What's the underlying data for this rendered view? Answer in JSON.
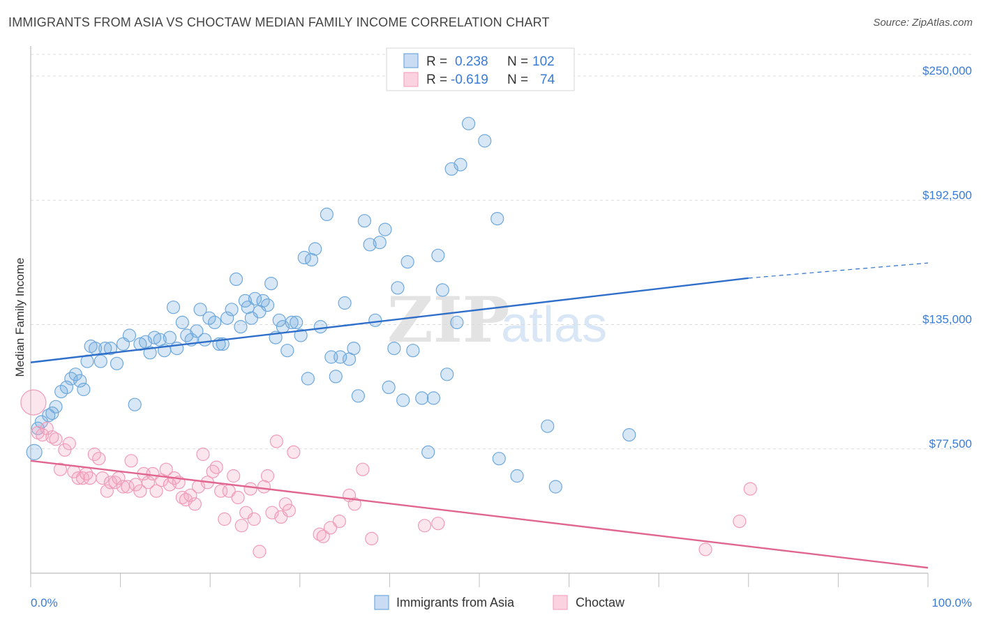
{
  "title": "IMMIGRANTS FROM ASIA VS CHOCTAW MEDIAN FAMILY INCOME CORRELATION CHART",
  "source": "Source: ZipAtlas.com",
  "watermark": {
    "zip": "ZIP",
    "atlas": "atlas"
  },
  "legend": {
    "rows": [
      {
        "r_label": "R =",
        "r_value": "0.238",
        "n_label": "N =",
        "n_value": "102"
      },
      {
        "r_label": "R =",
        "r_value": "-0.619",
        "n_label": "N =",
        "n_value": "74"
      }
    ]
  },
  "colors": {
    "blue": "#6fa8dc",
    "blue_line": "#2f6fca",
    "pink": "#f4a6c0",
    "pink_line": "#e0668f",
    "label_blue": "#3a7bd5"
  },
  "chart_data": {
    "type": "scatter",
    "title": "IMMIGRANTS FROM ASIA VS CHOCTAW MEDIAN FAMILY INCOME CORRELATION CHART",
    "xlabel": "",
    "ylabel": "Median Family Income",
    "xlim": [
      0,
      100
    ],
    "ylim": [
      20000,
      260000
    ],
    "x_tick_labels": [
      "0.0%",
      "100.0%"
    ],
    "y_ticks": [
      {
        "value": 77500,
        "label": "$77,500"
      },
      {
        "value": 135000,
        "label": "$135,000"
      },
      {
        "value": 192500,
        "label": "$192,500"
      },
      {
        "value": 250000,
        "label": "$250,000"
      }
    ],
    "grid": true,
    "legend_position": "top-center",
    "series": [
      {
        "name": "Immigrants from Asia",
        "color": "#6fa8dc",
        "r": 0.238,
        "n": 102,
        "trend": {
          "x": [
            0,
            80,
            100
          ],
          "y": [
            117500,
            156500,
            163500
          ]
        },
        "points": [
          [
            0.4,
            76000
          ],
          [
            0.8,
            87000
          ],
          [
            1.2,
            90000
          ],
          [
            2.0,
            93000
          ],
          [
            2.4,
            94000
          ],
          [
            2.8,
            97000
          ],
          [
            3.4,
            104000
          ],
          [
            4.0,
            106000
          ],
          [
            4.5,
            110000
          ],
          [
            5.0,
            112000
          ],
          [
            5.5,
            109000
          ],
          [
            5.9,
            105000
          ],
          [
            6.3,
            118000
          ],
          [
            6.7,
            125000
          ],
          [
            7.2,
            124000
          ],
          [
            7.8,
            118000
          ],
          [
            8.3,
            124000
          ],
          [
            8.9,
            124000
          ],
          [
            9.6,
            117000
          ],
          [
            10.3,
            126000
          ],
          [
            11.0,
            130000
          ],
          [
            11.6,
            98000
          ],
          [
            12.2,
            126000
          ],
          [
            12.8,
            127000
          ],
          [
            13.3,
            122000
          ],
          [
            13.8,
            129000
          ],
          [
            14.4,
            128000
          ],
          [
            14.9,
            123000
          ],
          [
            15.5,
            129000
          ],
          [
            15.9,
            143000
          ],
          [
            16.3,
            124000
          ],
          [
            16.9,
            136000
          ],
          [
            17.4,
            130000
          ],
          [
            17.9,
            128000
          ],
          [
            18.5,
            132000
          ],
          [
            18.9,
            142000
          ],
          [
            19.4,
            128000
          ],
          [
            19.9,
            138000
          ],
          [
            20.5,
            136000
          ],
          [
            21.0,
            126000
          ],
          [
            21.4,
            126000
          ],
          [
            21.9,
            138000
          ],
          [
            22.4,
            142000
          ],
          [
            22.9,
            156000
          ],
          [
            23.4,
            134000
          ],
          [
            23.9,
            146000
          ],
          [
            24.2,
            143000
          ],
          [
            24.6,
            138000
          ],
          [
            25.0,
            147000
          ],
          [
            25.5,
            141000
          ],
          [
            25.9,
            146000
          ],
          [
            26.4,
            144000
          ],
          [
            26.8,
            154000
          ],
          [
            27.3,
            129000
          ],
          [
            27.7,
            137000
          ],
          [
            28.1,
            134000
          ],
          [
            28.6,
            123000
          ],
          [
            29.1,
            136000
          ],
          [
            29.6,
            136000
          ],
          [
            30.1,
            130000
          ],
          [
            30.5,
            166000
          ],
          [
            30.9,
            110000
          ],
          [
            31.3,
            165000
          ],
          [
            31.7,
            170000
          ],
          [
            32.3,
            134000
          ],
          [
            33.0,
            186000
          ],
          [
            33.5,
            120000
          ],
          [
            34.0,
            111000
          ],
          [
            34.5,
            120000
          ],
          [
            35.0,
            145000
          ],
          [
            35.5,
            119000
          ],
          [
            36.0,
            124000
          ],
          [
            36.5,
            102000
          ],
          [
            37.2,
            183000
          ],
          [
            37.8,
            172000
          ],
          [
            38.4,
            137000
          ],
          [
            38.9,
            173000
          ],
          [
            39.5,
            179000
          ],
          [
            39.9,
            106000
          ],
          [
            40.5,
            124000
          ],
          [
            40.9,
            152000
          ],
          [
            41.5,
            100000
          ],
          [
            42.0,
            164000
          ],
          [
            42.6,
            123000
          ],
          [
            43.6,
            101000
          ],
          [
            44.3,
            76000
          ],
          [
            44.9,
            101000
          ],
          [
            45.4,
            167000
          ],
          [
            45.9,
            151000
          ],
          [
            46.4,
            112000
          ],
          [
            46.9,
            207000
          ],
          [
            47.5,
            136000
          ],
          [
            47.9,
            209000
          ],
          [
            48.8,
            228000
          ],
          [
            50.6,
            220000
          ],
          [
            52.0,
            184000
          ],
          [
            52.2,
            73000
          ],
          [
            54.2,
            65000
          ],
          [
            57.6,
            88000
          ],
          [
            58.5,
            60000
          ],
          [
            66.7,
            84000
          ]
        ]
      },
      {
        "name": "Choctaw",
        "color": "#f4a6c0",
        "r": -0.619,
        "n": 74,
        "trend": {
          "x": [
            0,
            100
          ],
          "y": [
            72000,
            22500
          ]
        },
        "points": [
          [
            0.3,
            99000
          ],
          [
            0.8,
            85000
          ],
          [
            1.3,
            84000
          ],
          [
            1.8,
            87000
          ],
          [
            2.4,
            83000
          ],
          [
            2.8,
            82000
          ],
          [
            3.3,
            68000
          ],
          [
            3.8,
            77000
          ],
          [
            4.3,
            80000
          ],
          [
            4.8,
            67000
          ],
          [
            5.3,
            64000
          ],
          [
            5.8,
            64000
          ],
          [
            6.2,
            66000
          ],
          [
            6.6,
            64000
          ],
          [
            7.1,
            75000
          ],
          [
            7.6,
            73000
          ],
          [
            8.0,
            64000
          ],
          [
            8.5,
            58000
          ],
          [
            8.9,
            62000
          ],
          [
            9.4,
            62000
          ],
          [
            9.8,
            64000
          ],
          [
            10.3,
            60000
          ],
          [
            10.8,
            60000
          ],
          [
            11.2,
            72000
          ],
          [
            11.7,
            61000
          ],
          [
            12.2,
            58000
          ],
          [
            12.6,
            66000
          ],
          [
            13.1,
            62000
          ],
          [
            13.6,
            66000
          ],
          [
            14.0,
            58000
          ],
          [
            14.6,
            63000
          ],
          [
            15.1,
            68000
          ],
          [
            15.5,
            61000
          ],
          [
            16.0,
            64000
          ],
          [
            16.5,
            62000
          ],
          [
            16.9,
            55000
          ],
          [
            17.3,
            54000
          ],
          [
            17.8,
            56000
          ],
          [
            18.3,
            52000
          ],
          [
            18.7,
            60000
          ],
          [
            19.2,
            75000
          ],
          [
            19.7,
            62000
          ],
          [
            20.3,
            67000
          ],
          [
            20.7,
            69000
          ],
          [
            21.2,
            58000
          ],
          [
            21.6,
            45000
          ],
          [
            22.1,
            58000
          ],
          [
            22.6,
            65000
          ],
          [
            23.1,
            55000
          ],
          [
            23.5,
            42000
          ],
          [
            24.0,
            48000
          ],
          [
            24.5,
            59000
          ],
          [
            24.9,
            45000
          ],
          [
            25.5,
            30000
          ],
          [
            26.0,
            60000
          ],
          [
            26.4,
            65000
          ],
          [
            26.9,
            48000
          ],
          [
            27.4,
            81000
          ],
          [
            27.9,
            46000
          ],
          [
            28.4,
            52000
          ],
          [
            28.8,
            49000
          ],
          [
            29.3,
            76000
          ],
          [
            32.2,
            38000
          ],
          [
            32.6,
            37000
          ],
          [
            33.4,
            41000
          ],
          [
            34.4,
            44000
          ],
          [
            35.5,
            56000
          ],
          [
            36.1,
            52000
          ],
          [
            37.0,
            68000
          ],
          [
            38.0,
            36000
          ],
          [
            43.9,
            42000
          ],
          [
            45.4,
            43000
          ],
          [
            75.2,
            31000
          ],
          [
            79.0,
            44000
          ],
          [
            80.2,
            59000
          ]
        ]
      }
    ]
  },
  "bottom_legend": [
    {
      "label": "Immigrants from Asia"
    },
    {
      "label": "Choctaw"
    }
  ]
}
